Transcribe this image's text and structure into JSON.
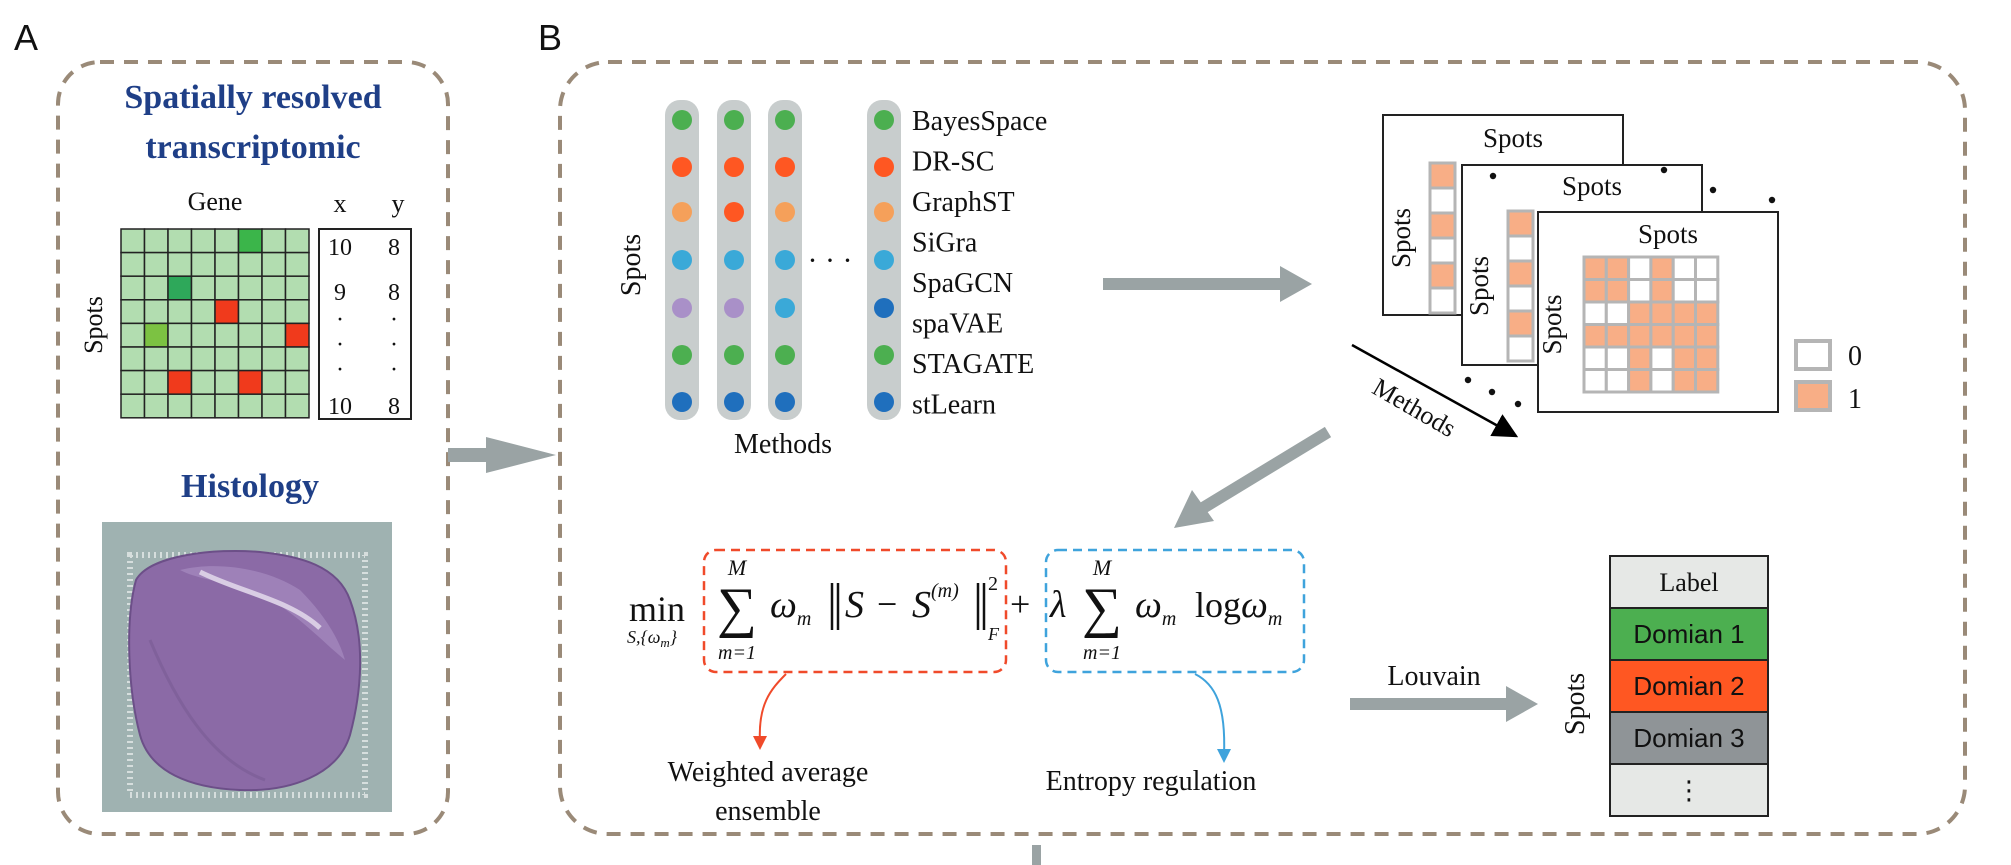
{
  "panel_a": {
    "letter": "A",
    "title_line1": "Spatially resolved",
    "title_line2": "transcriptomic",
    "gene_label": "Gene",
    "spots_label": "Spots",
    "coord_headers": [
      "x",
      "y"
    ],
    "coord_rows": [
      [
        "10",
        "8"
      ],
      [
        "9",
        "8"
      ],
      [
        "·",
        "·"
      ],
      [
        "·",
        "·"
      ],
      [
        "·",
        "·"
      ],
      [
        "10",
        "8"
      ]
    ],
    "histology_title": "Histology"
  },
  "panel_b": {
    "letter": "B",
    "spots_label": "Spots",
    "methods_label": "Methods",
    "ellipsis": "· · ·",
    "methods": [
      "BayesSpace",
      "DR-SC",
      "GraphST",
      "SiGra",
      "SpaGCN",
      "spaVAE",
      "STAGATE",
      "stLearn"
    ],
    "matrix_title": "Spots",
    "matrix_side_label": "Spots",
    "matrix_stack_label": "Methods",
    "legend": [
      "0",
      "1"
    ],
    "formula": {
      "min": "min",
      "min_sub": "S,{ω",
      "min_sub_m": "m",
      "min_sub_close": "}",
      "sum_top": "M",
      "sum_bottom": "m=1",
      "omega": "ω",
      "omega_sub": "m",
      "S": "S",
      "minus": "−",
      "S_m": "S",
      "S_m_sup": "(m)",
      "norm_sup": "2",
      "norm_sub": "F",
      "plus": "+",
      "lambda": "λ",
      "log": "log",
      "label_left_1": "Weighted average",
      "label_left_2": "ensemble",
      "label_right": "Entropy regulation"
    },
    "louvain": "Louvain",
    "result_spots_label": "Spots",
    "result_rows": [
      "Label",
      "Domian 1",
      "Domian 2",
      "Domian 3",
      "⋮"
    ]
  },
  "colors": {
    "dashed_border": "#9a8a78",
    "arrow": "#9aa3a4",
    "title_blue": "#1f3f87",
    "grid_green": "#b2ddb0",
    "matrix_orange": "#f8ae86",
    "matrix_border": "#b5b5b5",
    "domain1": "#4caf50",
    "domain2": "#ff5722",
    "domain3": "#8f9497",
    "label_bg": "#e6e8e6",
    "red_dash": "#f04a2a",
    "blue_dash": "#3fa3dc"
  }
}
